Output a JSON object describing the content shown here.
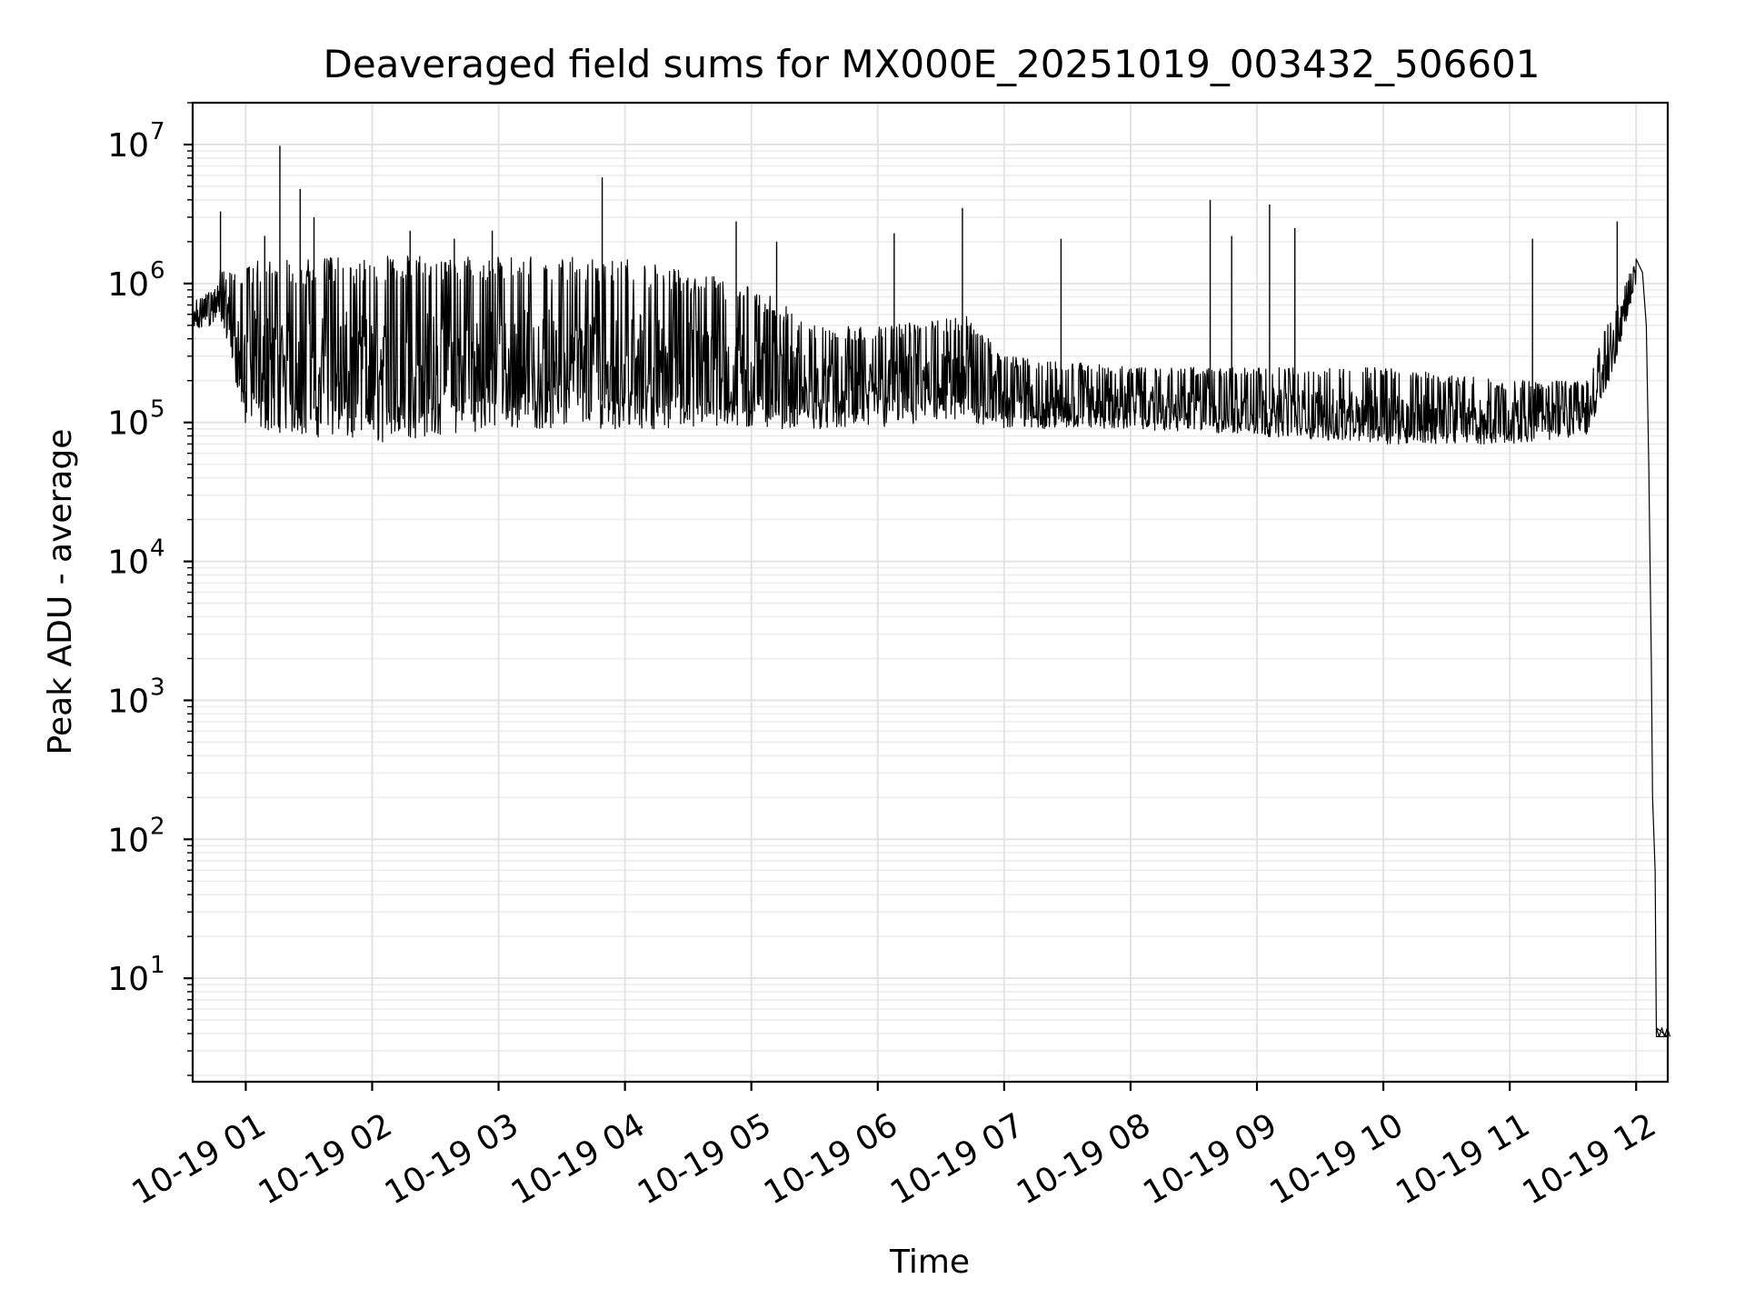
{
  "chart_data": {
    "type": "line",
    "title": "Deaveraged field sums for MX000E_20251019_003432_506601",
    "xlabel": "Time",
    "ylabel": "Peak ADU - average",
    "yscale": "log",
    "ylim": [
      1.8,
      20000000
    ],
    "xlim_hours": [
      0.58,
      12.25
    ],
    "grid": true,
    "x_ticks": [
      {
        "hour": 1,
        "label": "10-19 01"
      },
      {
        "hour": 2,
        "label": "10-19 02"
      },
      {
        "hour": 3,
        "label": "10-19 03"
      },
      {
        "hour": 4,
        "label": "10-19 04"
      },
      {
        "hour": 5,
        "label": "10-19 05"
      },
      {
        "hour": 6,
        "label": "10-19 06"
      },
      {
        "hour": 7,
        "label": "10-19 07"
      },
      {
        "hour": 8,
        "label": "10-19 08"
      },
      {
        "hour": 9,
        "label": "10-19 09"
      },
      {
        "hour": 10,
        "label": "10-19 10"
      },
      {
        "hour": 11,
        "label": "10-19 11"
      },
      {
        "hour": 12,
        "label": "10-19 12"
      }
    ],
    "y_ticks": [
      {
        "value": 10,
        "base": "10",
        "exp": "1"
      },
      {
        "value": 100,
        "base": "10",
        "exp": "2"
      },
      {
        "value": 1000,
        "base": "10",
        "exp": "3"
      },
      {
        "value": 10000,
        "base": "10",
        "exp": "4"
      },
      {
        "value": 100000,
        "base": "10",
        "exp": "5"
      },
      {
        "value": 1000000,
        "base": "10",
        "exp": "6"
      },
      {
        "value": 10000000,
        "base": "10",
        "exp": "7"
      }
    ],
    "series": [
      {
        "name": "field sums",
        "color": "#000000",
        "envelope": [
          {
            "hour": 0.58,
            "low": 450000,
            "high": 750000
          },
          {
            "hour": 0.75,
            "low": 500000,
            "high": 900000
          },
          {
            "hour": 0.78,
            "low": 600000,
            "high": 1500000
          },
          {
            "hour": 0.85,
            "low": 400000,
            "high": 1200000
          },
          {
            "hour": 1.0,
            "low": 90000,
            "high": 1500000
          },
          {
            "hour": 1.5,
            "low": 80000,
            "high": 1500000
          },
          {
            "hour": 2.0,
            "low": 70000,
            "high": 1600000
          },
          {
            "hour": 3.0,
            "low": 90000,
            "high": 1600000
          },
          {
            "hour": 4.0,
            "low": 90000,
            "high": 1500000
          },
          {
            "hour": 5.0,
            "low": 90000,
            "high": 1000000
          },
          {
            "hour": 5.5,
            "low": 90000,
            "high": 500000
          },
          {
            "hour": 6.0,
            "low": 90000,
            "high": 500000
          },
          {
            "hour": 6.7,
            "low": 100000,
            "high": 600000
          },
          {
            "hour": 7.0,
            "low": 90000,
            "high": 300000
          },
          {
            "hour": 8.0,
            "low": 90000,
            "high": 250000
          },
          {
            "hour": 9.0,
            "low": 80000,
            "high": 250000
          },
          {
            "hour": 10.0,
            "low": 70000,
            "high": 250000
          },
          {
            "hour": 11.0,
            "low": 70000,
            "high": 200000
          },
          {
            "hour": 11.6,
            "low": 80000,
            "high": 200000
          },
          {
            "hour": 11.8,
            "low": 200000,
            "high": 600000
          },
          {
            "hour": 12.0,
            "low": 1000000,
            "high": 1500000
          }
        ],
        "spikes": [
          {
            "hour": 0.8,
            "value": 3300000
          },
          {
            "hour": 1.15,
            "value": 2200000
          },
          {
            "hour": 1.27,
            "value": 9800000
          },
          {
            "hour": 1.43,
            "value": 4800000
          },
          {
            "hour": 1.54,
            "value": 3000000
          },
          {
            "hour": 2.3,
            "value": 2400000
          },
          {
            "hour": 2.65,
            "value": 2100000
          },
          {
            "hour": 2.95,
            "value": 2400000
          },
          {
            "hour": 3.82,
            "value": 5800000
          },
          {
            "hour": 4.88,
            "value": 2800000
          },
          {
            "hour": 5.2,
            "value": 2000000
          },
          {
            "hour": 6.13,
            "value": 2300000
          },
          {
            "hour": 6.67,
            "value": 3500000
          },
          {
            "hour": 7.45,
            "value": 2100000
          },
          {
            "hour": 8.63,
            "value": 4000000
          },
          {
            "hour": 8.8,
            "value": 2200000
          },
          {
            "hour": 9.1,
            "value": 3700000
          },
          {
            "hour": 9.3,
            "value": 2500000
          },
          {
            "hour": 11.18,
            "value": 2100000
          },
          {
            "hour": 11.85,
            "value": 2800000
          }
        ],
        "tail": [
          {
            "hour": 12.0,
            "value": 1500000
          },
          {
            "hour": 12.05,
            "value": 1200000
          },
          {
            "hour": 12.08,
            "value": 500000
          },
          {
            "hour": 12.1,
            "value": 50000
          },
          {
            "hour": 12.12,
            "value": 2000
          },
          {
            "hour": 12.13,
            "value": 200
          },
          {
            "hour": 12.15,
            "value": 60
          },
          {
            "hour": 12.16,
            "value": 3.8
          },
          {
            "hour": 12.25,
            "value": 3.8
          }
        ]
      }
    ]
  }
}
